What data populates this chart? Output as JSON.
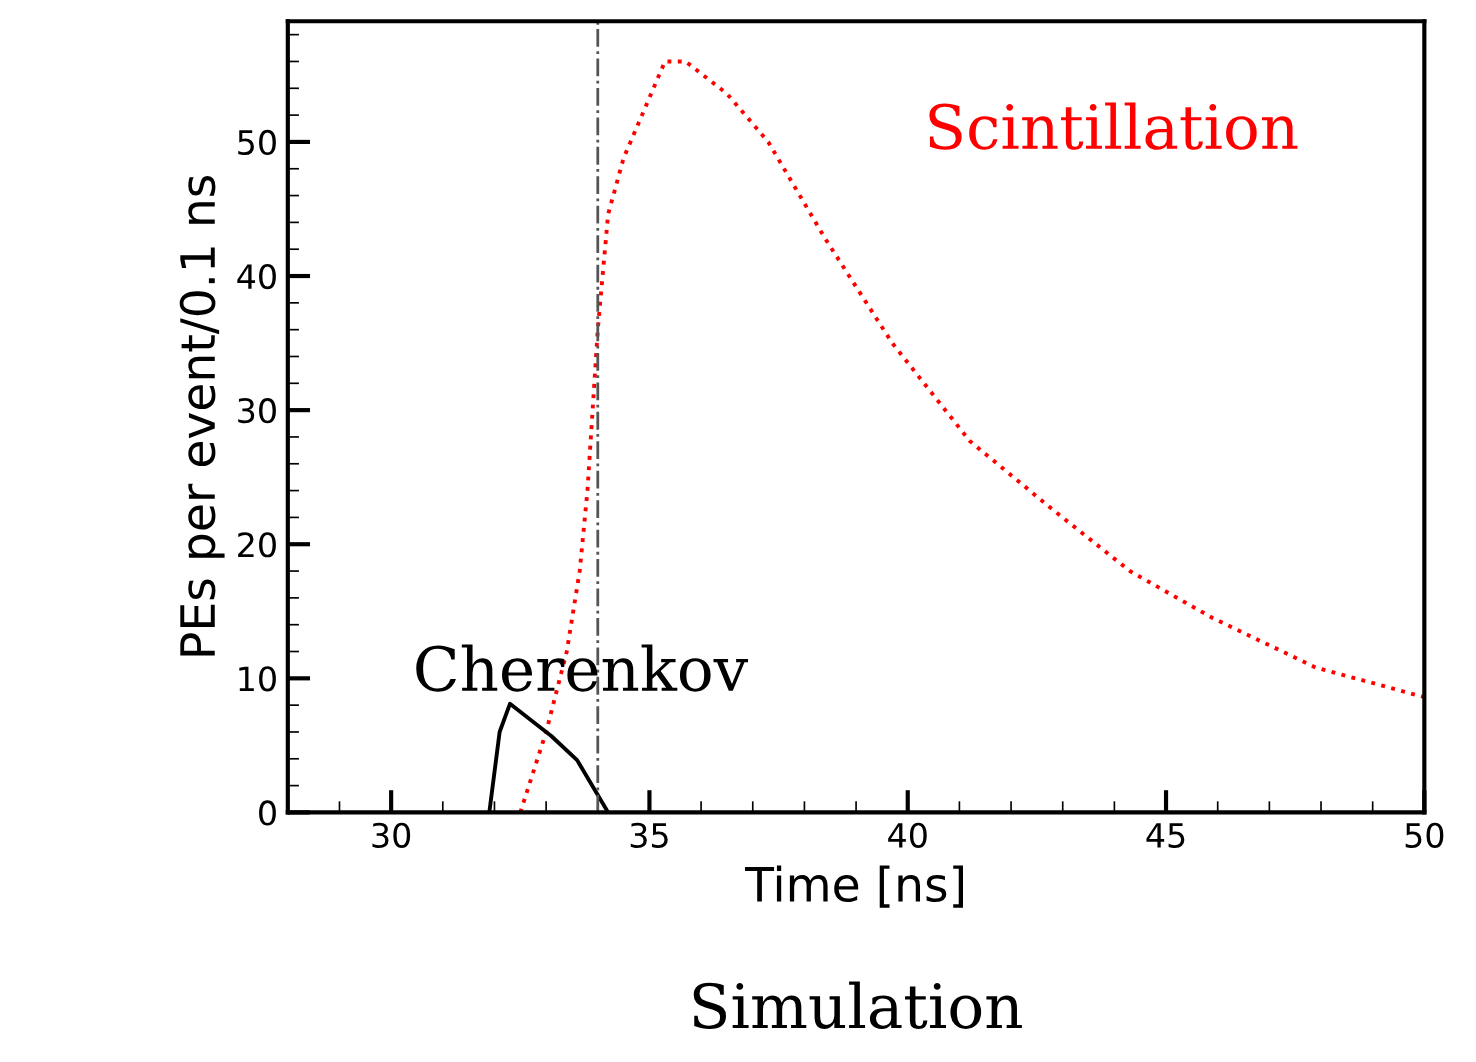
{
  "chart_data": {
    "type": "line",
    "xlabel": "Time [ns]",
    "ylabel": "PEs per event/0.1 ns",
    "xlim": [
      28,
      50
    ],
    "ylim": [
      0,
      59
    ],
    "xticks": [
      30,
      35,
      40,
      45,
      50
    ],
    "yticks": [
      0,
      10,
      20,
      30,
      40,
      50
    ],
    "grid": false,
    "marker": "none",
    "series": [
      {
        "name": "Scintillation",
        "color": "#ff0000",
        "line_style": "dotted",
        "x": [
          32.5,
          32.7,
          33.0,
          33.4,
          33.65,
          33.8,
          33.9,
          34.0,
          34.2,
          34.5,
          35.3,
          35.7,
          36.5,
          37.3,
          38.4,
          39.7,
          41.2,
          42.8,
          44.3,
          45.9,
          47.9,
          50.0
        ],
        "values": [
          0,
          2.4,
          6,
          12,
          18,
          24,
          30,
          36,
          44.6,
          48.8,
          56,
          56,
          53.6,
          50,
          42.8,
          35,
          27.7,
          22.6,
          18,
          14.5,
          10.8,
          8.6
        ]
      },
      {
        "name": "Cherenkov",
        "color": "#000000",
        "line_style": "solid",
        "x": [
          31.9,
          32.1,
          32.3,
          33.1,
          33.6,
          34.2
        ],
        "values": [
          0,
          6,
          8.1,
          5.7,
          3.9,
          0
        ]
      }
    ],
    "ref_lines": [
      {
        "axis": "x",
        "value": 34.0,
        "color": "#555555",
        "line_style": "dashed"
      }
    ],
    "annotations": [
      "Simulation"
    ]
  }
}
